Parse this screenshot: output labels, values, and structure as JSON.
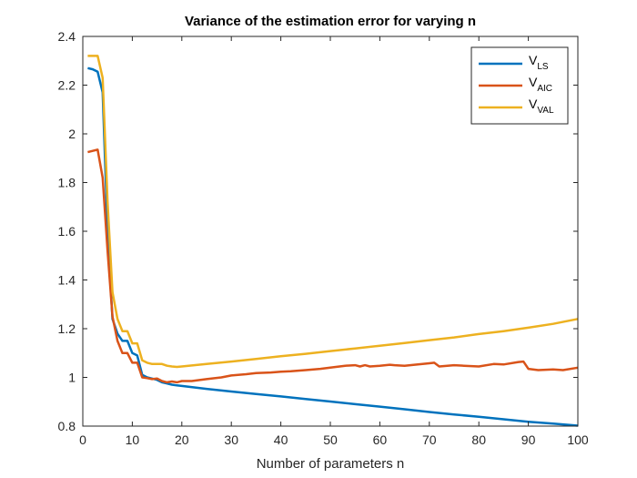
{
  "chart_data": {
    "type": "line",
    "title": "Variance of the estimation error for varying n",
    "xlabel": "Number of parameters n",
    "ylabel": "",
    "xlim": [
      0,
      100
    ],
    "ylim": [
      0.8,
      2.4
    ],
    "xticks": [
      0,
      10,
      20,
      30,
      40,
      50,
      60,
      70,
      80,
      90,
      100
    ],
    "yticks": [
      0.8,
      1,
      1.2,
      1.4,
      1.6,
      1.8,
      2,
      2.2,
      2.4
    ],
    "xtick_labels": [
      "0",
      "10",
      "20",
      "30",
      "40",
      "50",
      "60",
      "70",
      "80",
      "90",
      "100"
    ],
    "ytick_labels": [
      "0.8",
      "1",
      "1.2",
      "1.4",
      "1.6",
      "1.8",
      "2",
      "2.2",
      "2.4"
    ],
    "grid": false,
    "legend_position": "top-right",
    "series": [
      {
        "name": "V_LS",
        "legend_main": "V",
        "legend_sub": "LS",
        "color": "#0072BD",
        "x": [
          1,
          2,
          3,
          4,
          5,
          6,
          7,
          8,
          9,
          10,
          11,
          12,
          13,
          14,
          15,
          16,
          17,
          18,
          19,
          20,
          25,
          30,
          35,
          40,
          45,
          50,
          55,
          60,
          65,
          70,
          75,
          80,
          85,
          90,
          95,
          100
        ],
        "y": [
          2.27,
          2.265,
          2.255,
          2.17,
          1.6,
          1.24,
          1.18,
          1.15,
          1.15,
          1.1,
          1.09,
          1.01,
          1.0,
          0.995,
          0.99,
          0.98,
          0.975,
          0.97,
          0.967,
          0.965,
          0.953,
          0.942,
          0.932,
          0.922,
          0.911,
          0.901,
          0.89,
          0.88,
          0.869,
          0.858,
          0.848,
          0.838,
          0.828,
          0.818,
          0.81,
          0.802
        ]
      },
      {
        "name": "V_AIC",
        "legend_main": "V",
        "legend_sub": "AIC",
        "color": "#D95319",
        "x": [
          1,
          2,
          3,
          4,
          5,
          6,
          7,
          8,
          9,
          10,
          11,
          12,
          13,
          14,
          15,
          16,
          17,
          18,
          19,
          20,
          22,
          25,
          28,
          30,
          33,
          35,
          38,
          40,
          42,
          45,
          48,
          50,
          53,
          55,
          56,
          57,
          58,
          60,
          62,
          63,
          65,
          67,
          70,
          71,
          72,
          75,
          77,
          80,
          83,
          85,
          88,
          89,
          90,
          92,
          95,
          97,
          100
        ],
        "y": [
          1.925,
          1.93,
          1.935,
          1.82,
          1.52,
          1.25,
          1.15,
          1.1,
          1.1,
          1.06,
          1.06,
          1.0,
          0.997,
          0.993,
          0.995,
          0.985,
          0.98,
          0.983,
          0.98,
          0.985,
          0.985,
          0.993,
          1.0,
          1.008,
          1.013,
          1.018,
          1.02,
          1.023,
          1.025,
          1.03,
          1.035,
          1.04,
          1.048,
          1.05,
          1.045,
          1.05,
          1.045,
          1.048,
          1.052,
          1.05,
          1.048,
          1.052,
          1.058,
          1.06,
          1.045,
          1.05,
          1.048,
          1.045,
          1.055,
          1.053,
          1.063,
          1.065,
          1.035,
          1.03,
          1.033,
          1.03,
          1.04
        ]
      },
      {
        "name": "V_VAL",
        "legend_main": "V",
        "legend_sub": "VAL",
        "color": "#EDB120",
        "x": [
          1,
          2,
          3,
          4,
          5,
          6,
          7,
          8,
          9,
          10,
          11,
          12,
          13,
          14,
          15,
          16,
          17,
          18,
          19,
          20,
          25,
          30,
          35,
          40,
          45,
          50,
          55,
          60,
          65,
          70,
          75,
          80,
          85,
          90,
          95,
          100
        ],
        "y": [
          2.32,
          2.32,
          2.32,
          2.23,
          1.72,
          1.35,
          1.24,
          1.19,
          1.19,
          1.14,
          1.14,
          1.07,
          1.06,
          1.055,
          1.055,
          1.055,
          1.048,
          1.045,
          1.043,
          1.045,
          1.055,
          1.065,
          1.076,
          1.087,
          1.097,
          1.108,
          1.119,
          1.13,
          1.141,
          1.153,
          1.164,
          1.178,
          1.19,
          1.204,
          1.22,
          1.24
        ]
      }
    ]
  }
}
